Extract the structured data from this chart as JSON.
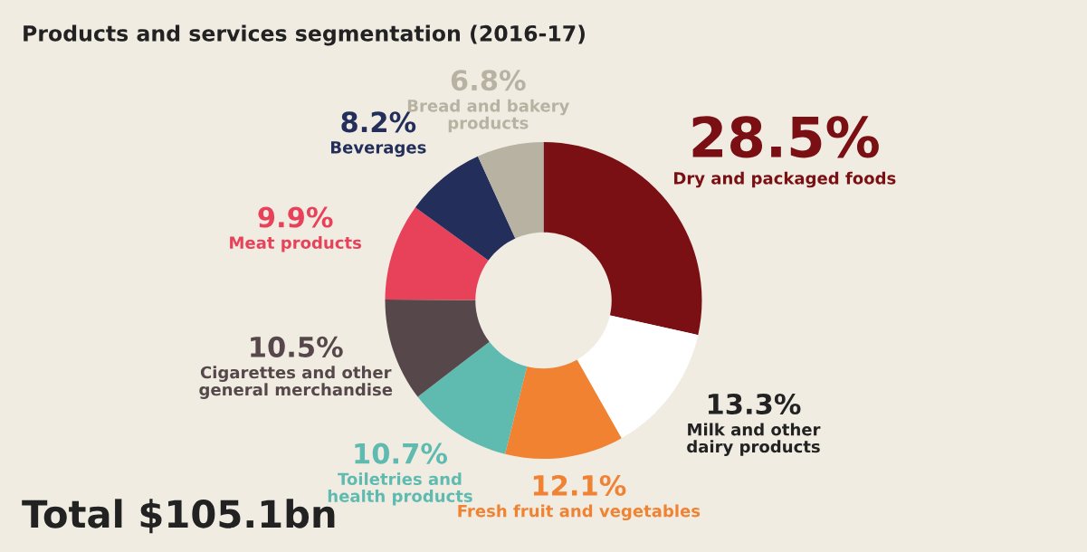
{
  "chart_data": {
    "type": "donut",
    "title": "Products and services segmentation (2016-17)",
    "categories": [
      "Dry and packaged foods",
      "Milk and other\ndairy products",
      "Fresh fruit and vegetables",
      "Toiletries and\nhealth products",
      "Cigarettes and other\ngeneral merchandise",
      "Meat products",
      "Beverages",
      "Bread and bakery\nproducts"
    ],
    "values": [
      28.5,
      13.3,
      12.1,
      10.7,
      10.5,
      9.9,
      8.2,
      6.8
    ],
    "colors": [
      "#7a1014",
      "#ffffff",
      "#f08232",
      "#5fbab0",
      "#56484a",
      "#e8415a",
      "#232e5a",
      "#b7b2a2"
    ],
    "value_labels": [
      "28.5%",
      "13.3%",
      "12.1%",
      "10.7%",
      "10.5%",
      "9.9%",
      "8.2%",
      "6.8%"
    ],
    "annotations": [
      "Total $105.1bn"
    ]
  }
}
